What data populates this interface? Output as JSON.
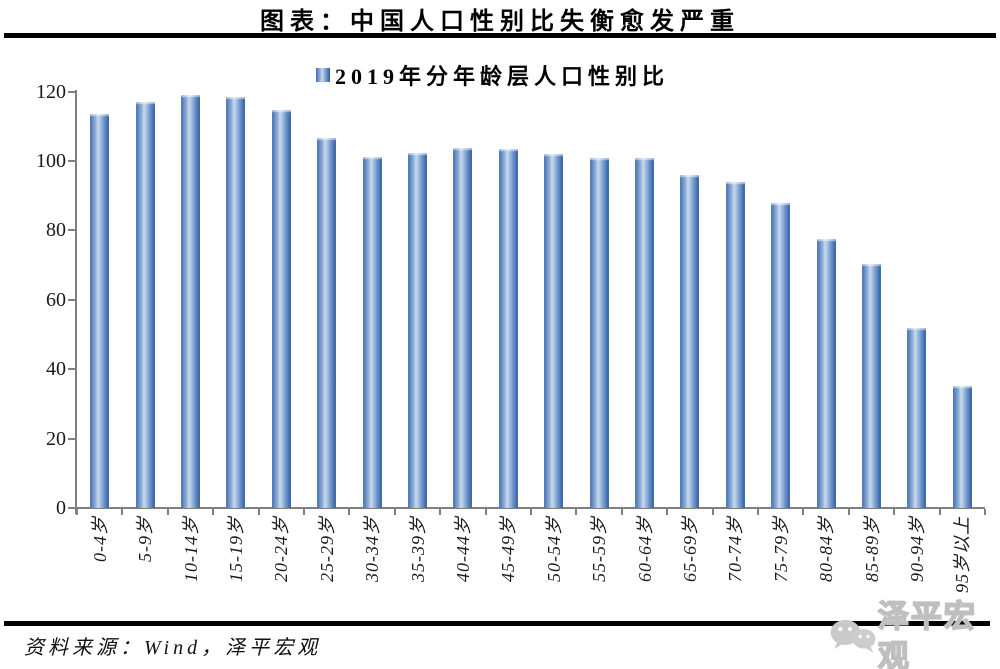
{
  "page": {
    "title": "图表：中国人口性别比失衡愈发严重",
    "source_note": "资料来源：Wind，泽平宏观"
  },
  "watermark": {
    "icon": "wechat-icon",
    "label": "泽平宏观",
    "color": "#c6c6c6"
  },
  "chart_data": {
    "type": "bar",
    "title": "2019年分年龄层人口性别比",
    "legend_entries": [
      "2019年分年龄层人口性别比"
    ],
    "legend_position": "top-center",
    "categories": [
      "0-4岁",
      "5-9岁",
      "10-14岁",
      "15-19岁",
      "20-24岁",
      "25-29岁",
      "30-34岁",
      "35-39岁",
      "40-44岁",
      "45-49岁",
      "50-54岁",
      "55-59岁",
      "60-64岁",
      "65-69岁",
      "70-74岁",
      "75-79岁",
      "80-84岁",
      "85-89岁",
      "90-94岁",
      "95岁以上"
    ],
    "values": [
      113.6,
      116.9,
      119.1,
      118.4,
      114.6,
      106.7,
      101.3,
      102.2,
      103.7,
      103.6,
      102.1,
      100.8,
      100.8,
      95.9,
      94.1,
      87.8,
      77.4,
      70.4,
      51.8,
      35.3
    ],
    "ylim": [
      0,
      120
    ],
    "yticks": [
      0,
      20,
      40,
      60,
      80,
      100,
      120
    ],
    "grid": false,
    "x_label_rotation": -90,
    "bar_color": "#4f81bd",
    "bar_gradient": [
      "#44699f",
      "#cad8ec",
      "#2d5894"
    ],
    "axis_color": "#808080"
  }
}
